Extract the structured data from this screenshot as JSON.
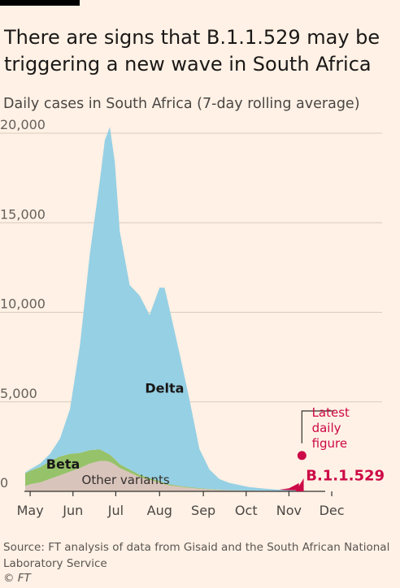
{
  "title": "There are signs that B.1.1.529 may be triggering a new wave in South Africa",
  "subtitle": "Daily cases in South Africa (7-day rolling average)",
  "source": "Source: FT analysis of data from Gisaid and the South African National Laboratory Service",
  "copyright": "© FT",
  "chart_data": {
    "type": "area",
    "stacked": true,
    "y_ticks": [
      0,
      5000,
      10000,
      15000,
      20000
    ],
    "y_tick_labels": [
      "0",
      "5,000",
      "10,000",
      "15,000",
      "20,000"
    ],
    "ylim": [
      0,
      20000
    ],
    "x_labels": [
      {
        "label": "May",
        "week": 0
      },
      {
        "label": "Jun",
        "week": 4.3
      },
      {
        "label": "Jul",
        "week": 8.6
      },
      {
        "label": "Aug",
        "week": 13
      },
      {
        "label": "Sep",
        "week": 17.4
      },
      {
        "label": "Oct",
        "week": 21.7
      },
      {
        "label": "Nov",
        "week": 26
      },
      {
        "label": "Dec",
        "week": 30.3
      }
    ],
    "x_week_range": [
      -0.5,
      27.6
    ],
    "grid": "horizontal",
    "colors": {
      "Other variants": "#d9c4bc",
      "Beta": "#96c26a",
      "Delta": "#96d0e4",
      "B.1.1.529": "#cc0a47",
      "gridline": "#d8cabc",
      "axis": "#33302e"
    },
    "weeks": [
      -0.5,
      0,
      1,
      2,
      3,
      4,
      5,
      6,
      7,
      7.5,
      8,
      8.5,
      9,
      10,
      11,
      12,
      13,
      13.5,
      14,
      15,
      16,
      17,
      18,
      19,
      20,
      21,
      22,
      23,
      24,
      25,
      26,
      27
    ],
    "series": [
      {
        "name": "Other variants",
        "values": [
          300,
          400,
          500,
          700,
          900,
          1100,
          1300,
          1550,
          1700,
          1700,
          1650,
          1500,
          1300,
          1050,
          800,
          650,
          500,
          400,
          330,
          260,
          200,
          150,
          110,
          80,
          60,
          50,
          40,
          30,
          30,
          20,
          10,
          0
        ]
      },
      {
        "name": "Beta",
        "values": [
          700,
          750,
          850,
          1000,
          1050,
          1000,
          850,
          750,
          650,
          500,
          400,
          300,
          220,
          170,
          130,
          100,
          80,
          70,
          60,
          50,
          40,
          30,
          20,
          15,
          10,
          10,
          0,
          0,
          0,
          0,
          0,
          0
        ]
      },
      {
        "name": "Delta",
        "values": [
          50,
          80,
          200,
          400,
          1000,
          2500,
          6000,
          11000,
          15000,
          17400,
          18300,
          16600,
          13000,
          10300,
          10000,
          9100,
          10800,
          10900,
          9800,
          7400,
          4900,
          2200,
          1100,
          600,
          400,
          300,
          200,
          150,
          100,
          70,
          60,
          60
        ]
      },
      {
        "name": "B.1.1.529",
        "values": [
          0,
          0,
          0,
          0,
          0,
          0,
          0,
          0,
          0,
          0,
          0,
          0,
          0,
          0,
          0,
          0,
          0,
          0,
          0,
          0,
          0,
          0,
          0,
          0,
          0,
          0,
          0,
          0,
          0,
          0,
          100,
          400
        ]
      }
    ],
    "annotations": [
      {
        "text": "Delta",
        "week": 13.5,
        "y": 5500
      },
      {
        "text": "Beta",
        "week": 3.3,
        "y": 1280
      },
      {
        "text": "Other variants",
        "week": 9.6,
        "y": 400
      },
      {
        "text": "B.1.1.529",
        "week": 27.7,
        "y": 700
      },
      {
        "text": "Latest daily figure",
        "lines": [
          "Latest",
          "daily",
          "figure"
        ],
        "marker_week": 27.3,
        "marker_y": 2000
      }
    ]
  }
}
